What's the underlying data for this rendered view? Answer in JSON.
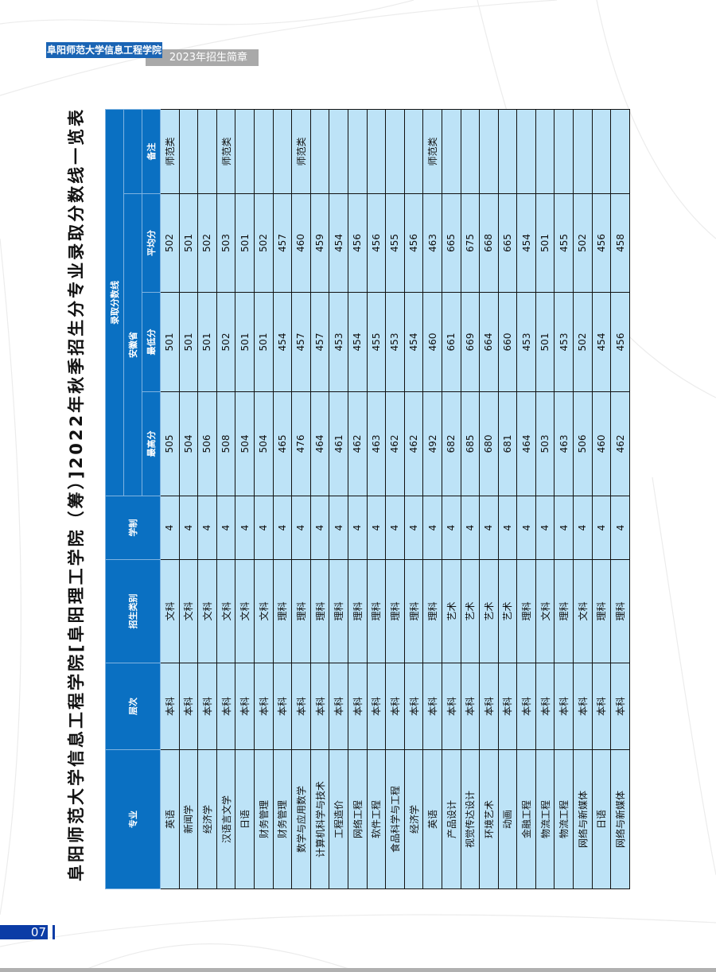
{
  "header": {
    "school": "阜阳师范大学信息工程学院",
    "brochure": "2023年招生简章"
  },
  "page_number": "07",
  "title": "阜阳师范大学信息工程学院[阜阳理工学院（筹）]2022年秋季招生分专业录取分数线一览表",
  "columns": {
    "major": "专业",
    "level": "层次",
    "category": "招生类别",
    "duration": "学制",
    "score_group": "录取分数线",
    "province": "安徽省",
    "max": "最高分",
    "min": "最低分",
    "avg": "平均分",
    "note": "备注"
  },
  "colors": {
    "header_blue": "#0a70c2",
    "cell_blue": "#bde3f7",
    "brand_blue": "#1a64b4"
  },
  "rows": [
    [
      "英语",
      "本科",
      "文科",
      "4",
      "505",
      "501",
      "502",
      "师范类"
    ],
    [
      "新闻学",
      "本科",
      "文科",
      "4",
      "504",
      "501",
      "501",
      ""
    ],
    [
      "经济学",
      "本科",
      "文科",
      "4",
      "506",
      "501",
      "502",
      ""
    ],
    [
      "汉语言文学",
      "本科",
      "文科",
      "4",
      "508",
      "502",
      "503",
      "师范类"
    ],
    [
      "日语",
      "本科",
      "文科",
      "4",
      "504",
      "501",
      "501",
      ""
    ],
    [
      "财务管理",
      "本科",
      "文科",
      "4",
      "504",
      "501",
      "502",
      ""
    ],
    [
      "财务管理",
      "本科",
      "理科",
      "4",
      "465",
      "454",
      "457",
      ""
    ],
    [
      "数学与应用数学",
      "本科",
      "理科",
      "4",
      "476",
      "457",
      "460",
      "师范类"
    ],
    [
      "计算机科学与技术",
      "本科",
      "理科",
      "4",
      "464",
      "457",
      "459",
      ""
    ],
    [
      "工程造价",
      "本科",
      "理科",
      "4",
      "461",
      "453",
      "454",
      ""
    ],
    [
      "网络工程",
      "本科",
      "理科",
      "4",
      "462",
      "454",
      "456",
      ""
    ],
    [
      "软件工程",
      "本科",
      "理科",
      "4",
      "463",
      "455",
      "456",
      ""
    ],
    [
      "食品科学与工程",
      "本科",
      "理科",
      "4",
      "462",
      "453",
      "455",
      ""
    ],
    [
      "经济学",
      "本科",
      "理科",
      "4",
      "462",
      "454",
      "456",
      ""
    ],
    [
      "英语",
      "本科",
      "理科",
      "4",
      "492",
      "460",
      "463",
      "师范类"
    ],
    [
      "产品设计",
      "本科",
      "艺术",
      "4",
      "682",
      "661",
      "665",
      ""
    ],
    [
      "视觉传达设计",
      "本科",
      "艺术",
      "4",
      "685",
      "669",
      "675",
      ""
    ],
    [
      "环境艺术",
      "本科",
      "艺术",
      "4",
      "680",
      "664",
      "668",
      ""
    ],
    [
      "动画",
      "本科",
      "艺术",
      "4",
      "681",
      "660",
      "665",
      ""
    ],
    [
      "金融工程",
      "本科",
      "理科",
      "4",
      "464",
      "453",
      "454",
      ""
    ],
    [
      "物流工程",
      "本科",
      "文科",
      "4",
      "503",
      "501",
      "501",
      ""
    ],
    [
      "物流工程",
      "本科",
      "理科",
      "4",
      "463",
      "453",
      "455",
      ""
    ],
    [
      "网络与新媒体",
      "本科",
      "文科",
      "4",
      "506",
      "502",
      "502",
      ""
    ],
    [
      "日语",
      "本科",
      "理科",
      "4",
      "460",
      "454",
      "456",
      ""
    ],
    [
      "网络与新媒体",
      "本科",
      "理科",
      "4",
      "462",
      "456",
      "458",
      ""
    ]
  ]
}
